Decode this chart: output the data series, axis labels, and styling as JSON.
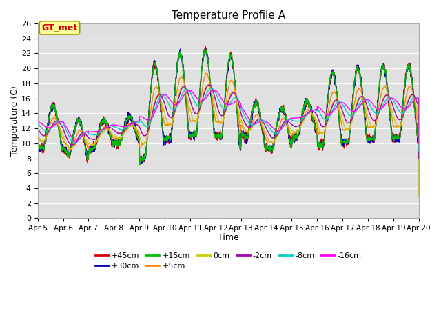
{
  "title": "Temperature Profile A",
  "xlabel": "Time",
  "ylabel": "Temperature (C)",
  "ylim": [
    0,
    26
  ],
  "yticks": [
    0,
    2,
    4,
    6,
    8,
    10,
    12,
    14,
    16,
    18,
    20,
    22,
    24,
    26
  ],
  "x_labels": [
    "Apr 5",
    "Apr 6",
    "Apr 7",
    "Apr 8",
    "Apr 9",
    "Apr 10",
    "Apr 11",
    "Apr 12",
    "Apr 13",
    "Apr 14",
    "Apr 15",
    "Apr 16",
    "Apr 17",
    "Apr 18",
    "Apr 19",
    "Apr 20"
  ],
  "annotation_text": "GT_met",
  "annotation_fgcolor": "#cc0000",
  "annotation_bgcolor": "#ffff99",
  "background_color": "#e0e0e0",
  "series": [
    {
      "label": "+45cm",
      "color": "#dd0000",
      "lw": 1.0
    },
    {
      "label": "+30cm",
      "color": "#0000cc",
      "lw": 1.0
    },
    {
      "label": "+15cm",
      "color": "#00bb00",
      "lw": 1.0
    },
    {
      "label": "+5cm",
      "color": "#ff8800",
      "lw": 1.0
    },
    {
      "label": "0cm",
      "color": "#cccc00",
      "lw": 1.0
    },
    {
      "label": "-2cm",
      "color": "#aa00aa",
      "lw": 1.0
    },
    {
      "label": "-8cm",
      "color": "#00cccc",
      "lw": 1.0
    },
    {
      "label": "-16cm",
      "color": "#ff00ff",
      "lw": 1.0
    }
  ]
}
